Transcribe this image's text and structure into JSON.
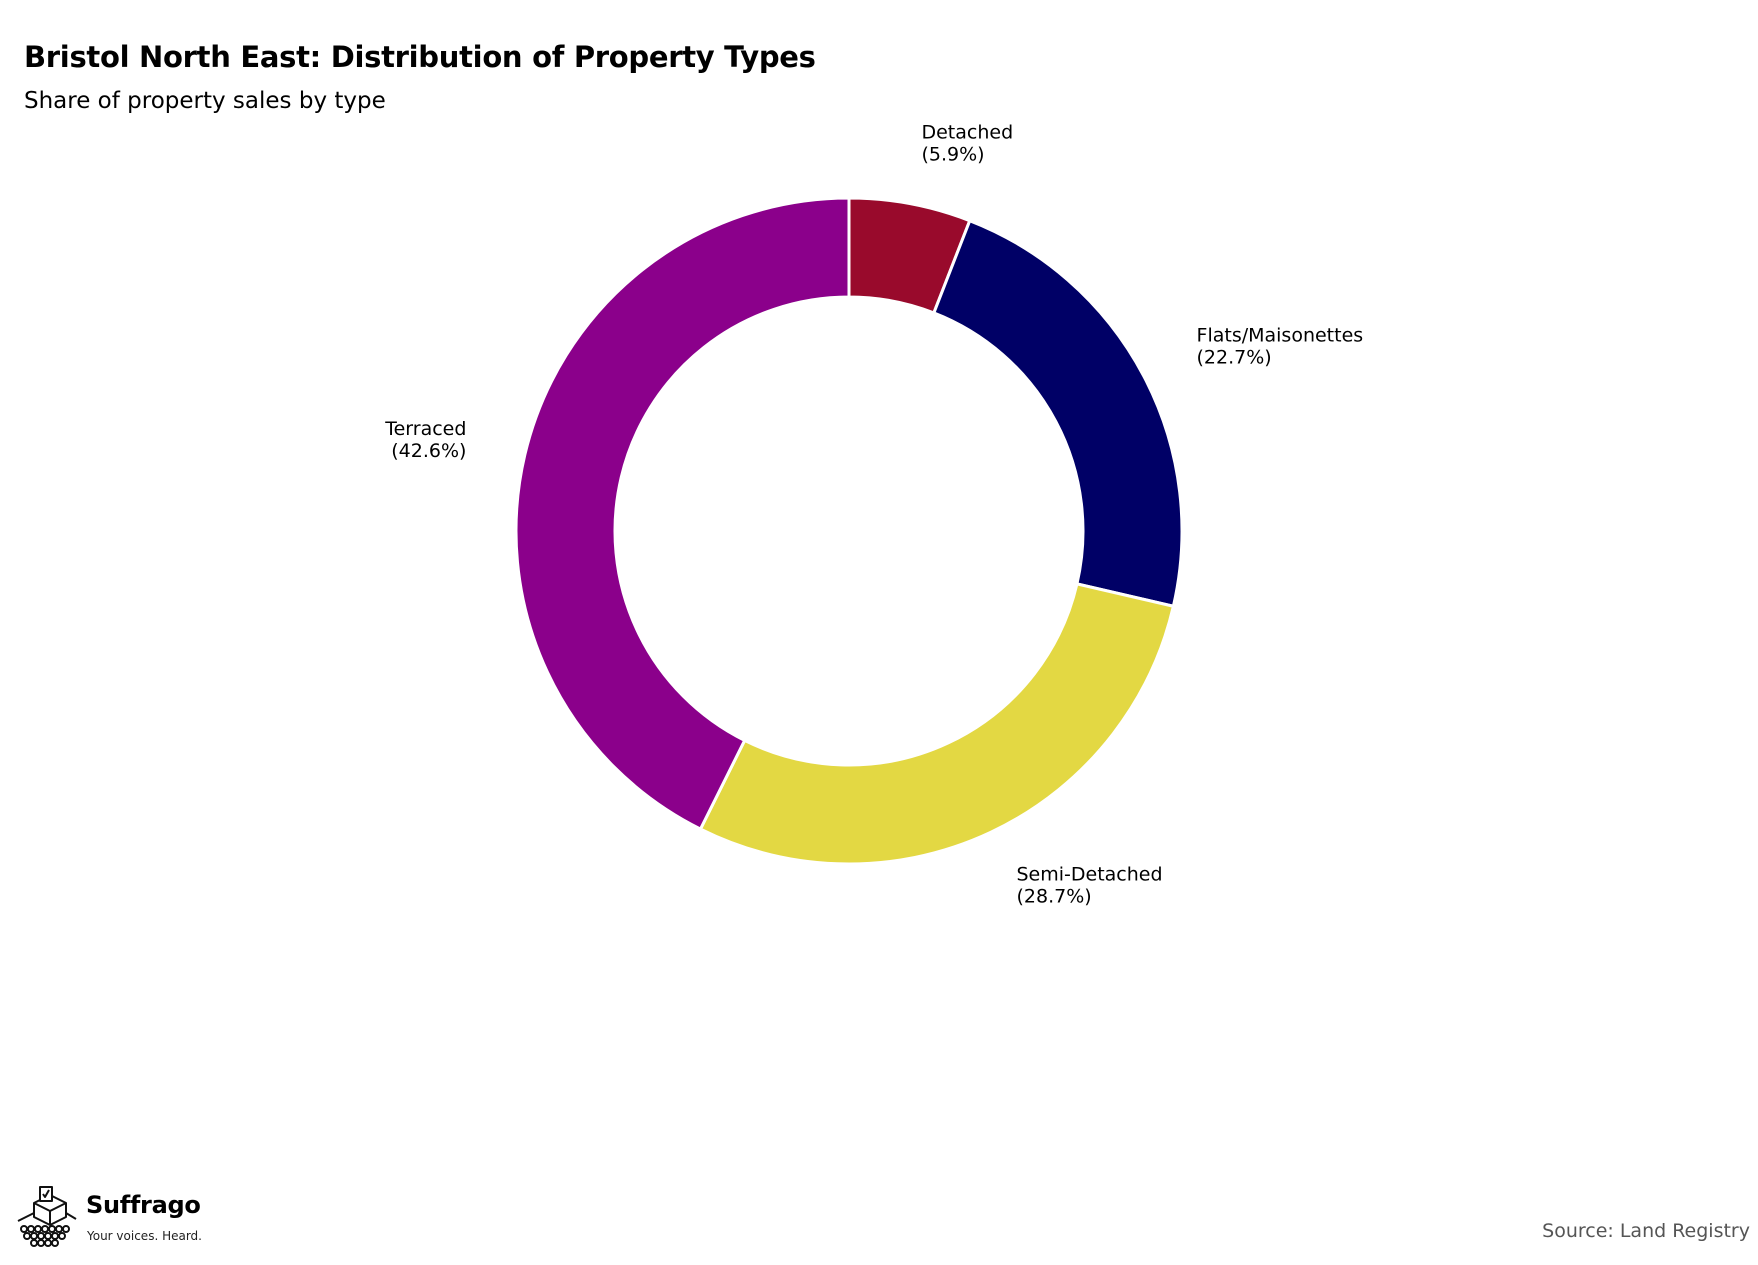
{
  "header": {
    "title": "Bristol North East: Distribution of Property Types",
    "subtitle": "Share of property sales by type"
  },
  "chart_data": {
    "type": "pie",
    "variant": "donut",
    "title": "Bristol North East: Distribution of Property Types",
    "subtitle": "Share of property sales by type",
    "categories": [
      "Detached",
      "Flats/Maisonettes",
      "Semi-Detached",
      "Terraced"
    ],
    "values": [
      5.9,
      22.7,
      28.7,
      42.6
    ],
    "value_labels": [
      "(5.9%)",
      "(22.7%)",
      "(28.7%)",
      "(42.6%)"
    ],
    "colors": [
      "#990a2c",
      "#000066",
      "#e3d843",
      "#8b008b"
    ],
    "start_angle_deg": 0,
    "direction": "clockwise",
    "legend": "none"
  },
  "footer": {
    "brand_name": "Suffrago",
    "brand_tagline": "Your voices. Heard.",
    "brand_icon": "ballot-box-icon",
    "source": "Source: Land Registry"
  }
}
